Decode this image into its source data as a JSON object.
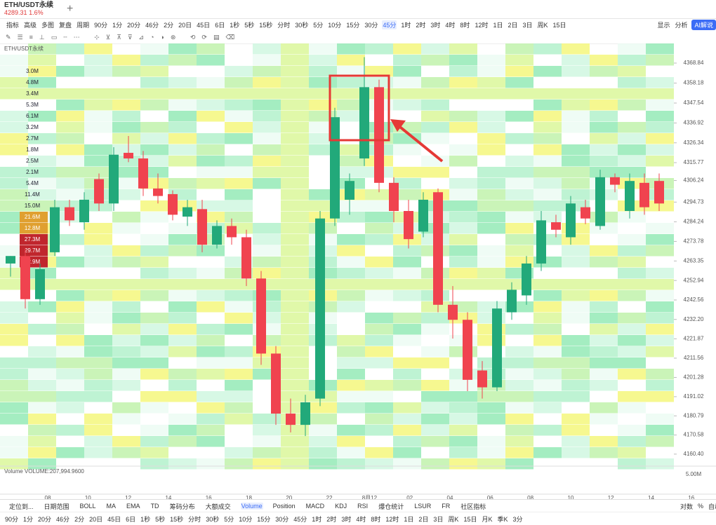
{
  "header": {
    "symbol": "ETH/USDT永续",
    "price": "4289.31",
    "change": "1.6%"
  },
  "toolbar": {
    "buttons": [
      "指标",
      "高级",
      "多图",
      "复盘",
      "周期"
    ],
    "intervals": [
      "90分",
      "1分",
      "20分",
      "46分",
      "2分",
      "20日",
      "45日",
      "6日",
      "1秒",
      "5秒",
      "15秒",
      "分时",
      "30秒",
      "5分",
      "10分",
      "15分",
      "30分",
      "45分",
      "1时",
      "2时",
      "3时",
      "4时",
      "8时",
      "12时",
      "1日",
      "2日",
      "3日",
      "周K",
      "15日"
    ],
    "active": "45分",
    "right": [
      "显示",
      "分析",
      "AI解说"
    ]
  },
  "chart_data": {
    "type": "candlestick",
    "title": "ETH/USDT永续",
    "up_color": "#22a97a",
    "down_color": "#f0434f",
    "open": [
      4262,
      4266,
      4243,
      4268,
      4292,
      4284,
      4307,
      4294,
      4321,
      4318,
      4302,
      4299,
      4287,
      4291,
      4272,
      4282,
      4276,
      4254,
      4214,
      4182,
      4176,
      4190,
      4286,
      4296,
      4318,
      4356,
      4305,
      4290,
      4279,
      4300,
      4240,
      4232,
      4205,
      4196,
      4236,
      4245,
      4262,
      4284,
      4276,
      4292,
      4282,
      4308,
      4290,
      4305,
      4306
    ],
    "high": [
      4266,
      4270,
      4262,
      4296,
      4296,
      4300,
      4310,
      4324,
      4330,
      4322,
      4310,
      4301,
      4296,
      4296,
      4285,
      4286,
      4280,
      4258,
      4218,
      4190,
      4192,
      4290,
      4345,
      4310,
      4372,
      4360,
      4308,
      4296,
      4300,
      4302,
      4250,
      4236,
      4210,
      4242,
      4252,
      4266,
      4290,
      4288,
      4298,
      4296,
      4312,
      4310,
      4310,
      4310,
      4310
    ],
    "low": [
      4255,
      4238,
      4240,
      4266,
      4282,
      4280,
      4290,
      4290,
      4316,
      4298,
      4294,
      4285,
      4282,
      4268,
      4270,
      4272,
      4250,
      4208,
      4176,
      4172,
      4170,
      4186,
      4282,
      4288,
      4314,
      4300,
      4284,
      4270,
      4276,
      4236,
      4222,
      4194,
      4190,
      4194,
      4232,
      4240,
      4258,
      4276,
      4272,
      4283,
      4280,
      4300,
      4286,
      4288,
      4290
    ],
    "close": [
      4266,
      4243,
      4259,
      4292,
      4285,
      4296,
      4294,
      4320,
      4318,
      4302,
      4298,
      4288,
      4292,
      4272,
      4282,
      4276,
      4254,
      4214,
      4182,
      4176,
      4188,
      4286,
      4340,
      4306,
      4356,
      4305,
      4290,
      4275,
      4296,
      4240,
      4232,
      4200,
      4196,
      4238,
      4248,
      4262,
      4285,
      4280,
      4294,
      4286,
      4308,
      4304,
      4306,
      4292,
      4294
    ],
    "ylim": [
      4154,
      4379.3
    ],
    "yticks": [
      {
        "value": 4368.84,
        "label": "4368.84"
      },
      {
        "value": 4358.18,
        "label": "4358.18"
      },
      {
        "value": 4347.54,
        "label": "4347.54"
      },
      {
        "value": 4336.92,
        "label": "4336.92"
      },
      {
        "value": 4326.34,
        "label": "4326.34"
      },
      {
        "value": 4315.77,
        "label": "4315.77"
      },
      {
        "value": 4306.24,
        "label": "4306.24"
      },
      {
        "value": 4294.73,
        "label": "4294.73"
      },
      {
        "value": 4284.24,
        "label": "4284.24"
      },
      {
        "value": 4273.78,
        "label": "4273.78"
      },
      {
        "value": 4263.35,
        "label": "4263.35"
      },
      {
        "value": 4252.94,
        "label": "4252.94"
      },
      {
        "value": 4242.56,
        "label": "4242.56"
      },
      {
        "value": 4232.2,
        "label": "4232.20"
      },
      {
        "value": 4221.87,
        "label": "4221.87"
      },
      {
        "value": 4211.56,
        "label": "4211.56"
      },
      {
        "value": 4201.28,
        "label": "4201.28"
      },
      {
        "value": 4191.02,
        "label": "4191.02"
      },
      {
        "value": 4180.79,
        "label": "4180.79"
      },
      {
        "value": 4170.58,
        "label": "4170.58"
      },
      {
        "value": 4160.4,
        "label": "4160.40"
      }
    ],
    "x_labels": [
      "08",
      "10",
      "12",
      "14",
      "16",
      "18",
      "20",
      "22",
      "8月12",
      "02",
      "04",
      "06",
      "08",
      "10",
      "12",
      "14",
      "16"
    ],
    "heatmap_labels": [
      "3.0M",
      "4.8M",
      "3.4M",
      "5.3M",
      "6.1M",
      "3.2M",
      "2.7M",
      "1.8M",
      "2.5M",
      "2.1M",
      "5.4M",
      "11.4M",
      "15.0M",
      "21.6M",
      "12.8M",
      "27.3M",
      "29.7M",
      "32.9M"
    ],
    "volume_label": "Volume  VOLUME:207,994.9600",
    "volume_scale": "5.00M"
  },
  "bottom": {
    "tabs": [
      "定位到...",
      "日期范围",
      "BOLL",
      "MA",
      "EMA",
      "TD",
      "筹码分布",
      "大额成交",
      "Volume",
      "Position",
      "MACD",
      "KDJ",
      "RSI",
      "爆仓统计",
      "LSUR",
      "FR",
      "社区指标"
    ],
    "active": "Volume",
    "right": [
      "对数",
      "%",
      "自动"
    ],
    "intervals": [
      "90分",
      "1分",
      "20分",
      "46分",
      "2分",
      "20日",
      "45日",
      "6日",
      "1秒",
      "5秒",
      "15秒",
      "分时",
      "30秒",
      "5分",
      "10分",
      "15分",
      "30分",
      "45分",
      "1时",
      "2时",
      "3时",
      "4时",
      "8时",
      "12时",
      "1日",
      "2日",
      "3日",
      "周K",
      "15日",
      "月K",
      "季K",
      "3分"
    ]
  }
}
